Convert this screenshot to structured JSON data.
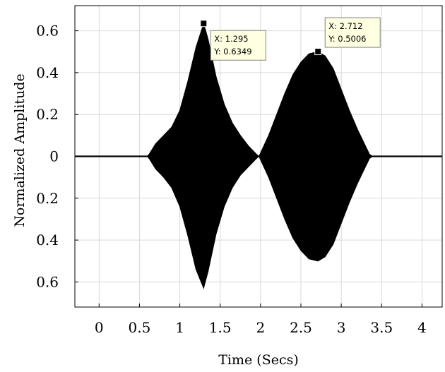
{
  "chart_data": {
    "type": "area",
    "xlabel": "Time (Secs)",
    "ylabel": "Normalized Amplitude",
    "xlim": [
      -0.3,
      4.25
    ],
    "ylim": [
      -0.72,
      0.72
    ],
    "x_ticks": [
      0,
      0.5,
      1,
      1.5,
      2,
      2.5,
      3,
      3.5,
      4
    ],
    "x_tick_labels": [
      "0",
      "0.5",
      "1",
      "1.5",
      "2",
      "2.5",
      "3",
      "3.5",
      "4"
    ],
    "y_ticks": [
      0.6,
      0.4,
      0.2,
      0,
      -0.2,
      -0.4,
      -0.6
    ],
    "y_tick_labels": [
      "0.6",
      "0.4",
      "0.2",
      "0",
      "0.2",
      "0.4",
      "0.6"
    ],
    "grid": true,
    "series": [
      {
        "color": "#000000",
        "envelope": {
          "x": [
            -0.3,
            0.6,
            0.62,
            0.7,
            0.8,
            0.9,
            1.0,
            1.1,
            1.2,
            1.295,
            1.35,
            1.45,
            1.55,
            1.65,
            1.75,
            1.85,
            1.95,
            1.98,
            2.1,
            2.2,
            2.3,
            2.4,
            2.5,
            2.6,
            2.712,
            2.8,
            2.9,
            3.0,
            3.1,
            3.2,
            3.3,
            3.35,
            3.38,
            4.25
          ],
          "upper": [
            0.002,
            0.002,
            0.01,
            0.06,
            0.1,
            0.14,
            0.22,
            0.36,
            0.52,
            0.6349,
            0.56,
            0.38,
            0.25,
            0.16,
            0.1,
            0.05,
            0.01,
            0.0,
            0.1,
            0.2,
            0.3,
            0.39,
            0.45,
            0.49,
            0.5006,
            0.48,
            0.42,
            0.32,
            0.22,
            0.13,
            0.05,
            0.01,
            0.002,
            0.002
          ],
          "lower": [
            -0.002,
            -0.002,
            -0.01,
            -0.06,
            -0.1,
            -0.15,
            -0.24,
            -0.38,
            -0.54,
            -0.63,
            -0.55,
            -0.37,
            -0.24,
            -0.15,
            -0.09,
            -0.05,
            -0.01,
            0.0,
            -0.1,
            -0.2,
            -0.3,
            -0.39,
            -0.45,
            -0.49,
            -0.5,
            -0.48,
            -0.42,
            -0.32,
            -0.22,
            -0.13,
            -0.05,
            -0.01,
            -0.002,
            -0.002
          ]
        }
      }
    ],
    "annotations": [
      {
        "x": 1.295,
        "y": 0.6349,
        "line1": "X: 1.295",
        "line2": "Y: 0.6349"
      },
      {
        "x": 2.712,
        "y": 0.5006,
        "line1": "X: 2.712",
        "line2": "Y: 0.5006"
      }
    ]
  }
}
